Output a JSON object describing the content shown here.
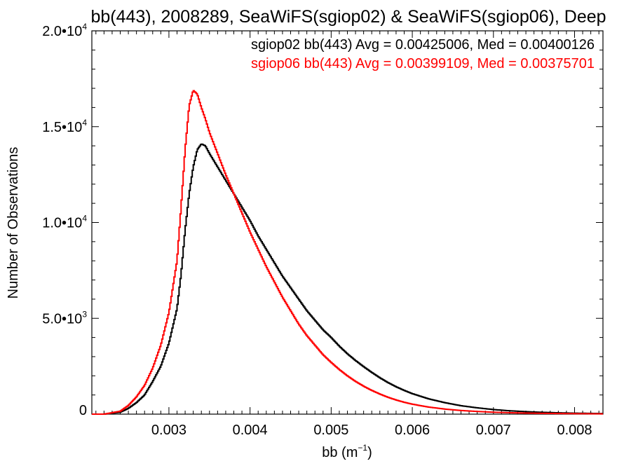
{
  "chart_data": {
    "type": "line",
    "title": "bb(443), 2008289, SeaWiFS(sgiop02) & SeaWiFS(sgiop06), Deep",
    "xlabel": "bb (m",
    "xlabel_sup": "−1",
    "xlabel_close": ")",
    "ylabel": "Number of Observations",
    "xlim": [
      0.00205,
      0.00835
    ],
    "ylim": [
      0,
      20000
    ],
    "grid": false,
    "x_ticks": [
      {
        "value": 0.003,
        "label": "0.003"
      },
      {
        "value": 0.004,
        "label": "0.004"
      },
      {
        "value": 0.005,
        "label": "0.005"
      },
      {
        "value": 0.006,
        "label": "0.006"
      },
      {
        "value": 0.007,
        "label": "0.007"
      },
      {
        "value": 0.008,
        "label": "0.008"
      }
    ],
    "y_ticks": [
      {
        "value": 0,
        "label": "0",
        "sup": ""
      },
      {
        "value": 5000,
        "label": "5.0•10",
        "sup": "3"
      },
      {
        "value": 10000,
        "label": "1.0•10",
        "sup": "4"
      },
      {
        "value": 15000,
        "label": "1.5•10",
        "sup": "4"
      },
      {
        "value": 20000,
        "label": "2.0•10",
        "sup": "4"
      }
    ],
    "legend_position": "top-right",
    "series": [
      {
        "name": "sgiop02 bb(443) Avg = 0.00425006, Med = 0.00400126",
        "color": "#000000",
        "x": [
          0.00205,
          0.0022,
          0.0024,
          0.0025,
          0.0026,
          0.0027,
          0.0028,
          0.0029,
          0.003,
          0.0031,
          0.00315,
          0.0032,
          0.00325,
          0.0033,
          0.00335,
          0.0034,
          0.00345,
          0.0035,
          0.0036,
          0.0037,
          0.0038,
          0.0039,
          0.004,
          0.0041,
          0.0042,
          0.0043,
          0.0044,
          0.0045,
          0.0046,
          0.0047,
          0.0048,
          0.0049,
          0.005,
          0.0051,
          0.0052,
          0.0053,
          0.0054,
          0.0055,
          0.0056,
          0.0057,
          0.0058,
          0.0059,
          0.006,
          0.0062,
          0.0064,
          0.0066,
          0.0068,
          0.007,
          0.0072,
          0.0074,
          0.0076,
          0.0078,
          0.008,
          0.0082,
          0.00835
        ],
        "y": [
          0,
          0,
          100,
          300,
          600,
          1000,
          1700,
          2500,
          3700,
          5500,
          7300,
          9600,
          11500,
          12900,
          13800,
          14100,
          14000,
          13600,
          12900,
          12200,
          11500,
          10800,
          10100,
          9300,
          8600,
          7900,
          7200,
          6600,
          6000,
          5400,
          4900,
          4400,
          4000,
          3550,
          3150,
          2800,
          2480,
          2180,
          1900,
          1650,
          1430,
          1240,
          1070,
          800,
          600,
          440,
          330,
          240,
          175,
          130,
          95,
          70,
          50,
          40,
          30
        ]
      },
      {
        "name": "sgiop06 bb(443) Avg = 0.00399109, Med = 0.00375701",
        "color": "#ff0000",
        "x": [
          0.00205,
          0.0022,
          0.0024,
          0.0025,
          0.0026,
          0.0027,
          0.0028,
          0.0029,
          0.003,
          0.0031,
          0.00315,
          0.0032,
          0.00325,
          0.0033,
          0.00335,
          0.0034,
          0.00345,
          0.0035,
          0.0036,
          0.0037,
          0.0038,
          0.0039,
          0.004,
          0.0041,
          0.0042,
          0.0043,
          0.0044,
          0.0045,
          0.0046,
          0.0047,
          0.0048,
          0.0049,
          0.005,
          0.0051,
          0.0052,
          0.0053,
          0.0054,
          0.0055,
          0.0056,
          0.0057,
          0.0058,
          0.0059,
          0.006,
          0.0062,
          0.0064,
          0.0066,
          0.0068,
          0.007,
          0.0072,
          0.0074,
          0.0076,
          0.0078,
          0.008,
          0.0082,
          0.00835
        ],
        "y": [
          0,
          0,
          150,
          450,
          900,
          1500,
          2400,
          3600,
          5300,
          8000,
          10800,
          13800,
          16100,
          16900,
          16700,
          16000,
          15400,
          14700,
          13600,
          12500,
          11500,
          10500,
          9500,
          8600,
          7700,
          6900,
          6100,
          5400,
          4700,
          4100,
          3600,
          3100,
          2700,
          2330,
          2000,
          1710,
          1460,
          1240,
          1050,
          880,
          740,
          620,
          520,
          370,
          265,
          190,
          140,
          100,
          75,
          55,
          42,
          32,
          25,
          20,
          15
        ]
      }
    ]
  }
}
